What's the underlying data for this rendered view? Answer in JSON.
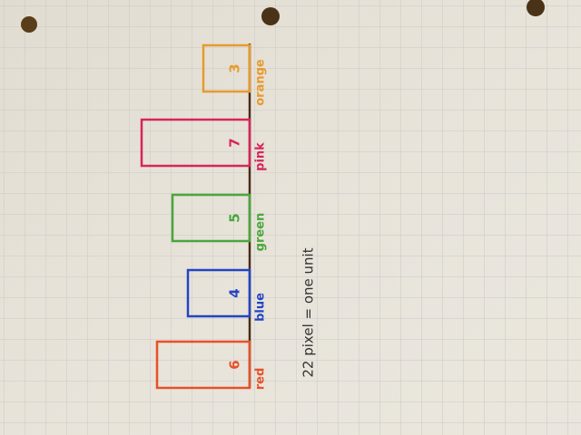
{
  "bars": [
    {
      "value": 6,
      "label": "red",
      "color": "#e8502a"
    },
    {
      "value": 4,
      "label": "blue",
      "color": "#2344c4"
    },
    {
      "value": 5,
      "label": "green",
      "color": "#4aa63c"
    },
    {
      "value": 7,
      "label": "pink",
      "color": "#d8245a"
    },
    {
      "value": 3,
      "label": "orange",
      "color": "#e89a2c"
    }
  ],
  "note": "22 pixel = one unit"
}
